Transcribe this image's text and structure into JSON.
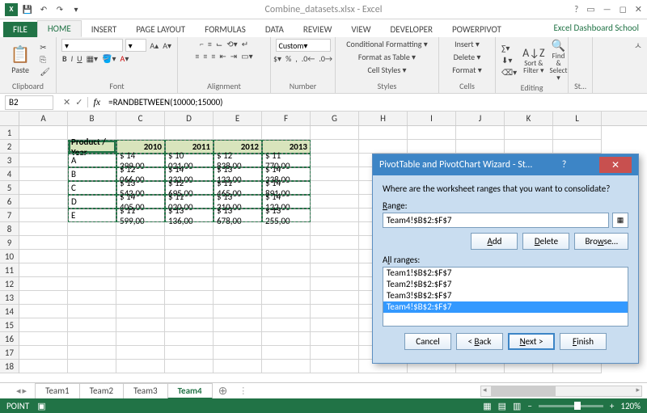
{
  "title": "Combine_datasets.xlsx - Excel",
  "link_text": "Excel Dashboard School",
  "tabs": [
    "FILE",
    "HOME",
    "INSERT",
    "PAGE LAYOUT",
    "FORMULAS",
    "DATA",
    "REVIEW",
    "VIEW",
    "DEVELOPER",
    "POWERPIVOT"
  ],
  "active_tab": "HOME",
  "ribbon": {
    "clipboard": {
      "label": "Clipboard",
      "paste": "Paste"
    },
    "font": {
      "label": "Font",
      "name": "",
      "size": "",
      "buttons": [
        "B",
        "I",
        "U"
      ]
    },
    "alignment": {
      "label": "Alignment"
    },
    "number": {
      "label": "Number",
      "format": "Custom"
    },
    "styles": {
      "label": "Styles",
      "items": [
        "Conditional Formatting ▾",
        "Format as Table ▾",
        "Cell Styles ▾"
      ]
    },
    "cells": {
      "label": "Cells",
      "items": [
        "Insert ▾",
        "Delete ▾",
        "Format ▾"
      ]
    },
    "editing": {
      "label": "Editing",
      "items": [
        "Sort & Filter ▾",
        "Find & Select ▾"
      ]
    },
    "st": {
      "label": "St…"
    }
  },
  "namebox": "B2",
  "formula": "=RANDBETWEEN(10000;15000)",
  "cols": [
    "A",
    "B",
    "C",
    "D",
    "E",
    "F",
    "G",
    "H",
    "I",
    "J",
    "K",
    "L"
  ],
  "rows_count": 18,
  "table": {
    "header": [
      "Product  / Year",
      "2010",
      "2011",
      "2012",
      "2013"
    ],
    "rows": [
      [
        "A",
        "$  14 399,00",
        "$  10 021,00",
        "$  12 838,00",
        "$  11 770,00"
      ],
      [
        "B",
        "$  12 066,00",
        "$  14 332,00",
        "$  13 123,00",
        "$  14 338,00"
      ],
      [
        "C",
        "$  13 543,00",
        "$  12 695,00",
        "$  11 465,00",
        "$  14 891,00"
      ],
      [
        "D",
        "$  14 405,00",
        "$  11 020,00",
        "$  13 310,00",
        "$  14 122,00"
      ],
      [
        "E",
        "$  11 599,00",
        "$  13 136,00",
        "$  13 678,00",
        "$  13 255,00"
      ]
    ]
  },
  "sheets": [
    "Team1",
    "Team2",
    "Team3",
    "Team4"
  ],
  "active_sheet": "Team4",
  "status": {
    "mode": "POINT",
    "zoom": "120%"
  },
  "dialog": {
    "title": "PivotTable and PivotChart Wizard - St…",
    "prompt": "Where are the worksheet ranges that you want to consolidate?",
    "range_label": "Range:",
    "range_value": "Team4!$B$2:$F$7",
    "add": "Add",
    "delete": "Delete",
    "browse": "Browse…",
    "all_ranges_label": "All ranges:",
    "ranges": [
      "Team1!$B$2:$F$7",
      "Team2!$B$2:$F$7",
      "Team3!$B$2:$F$7",
      "Team4!$B$2:$F$7"
    ],
    "selected_range_idx": 3,
    "cancel": "Cancel",
    "back": "< Back",
    "next": "Next >",
    "finish": "Finish"
  }
}
